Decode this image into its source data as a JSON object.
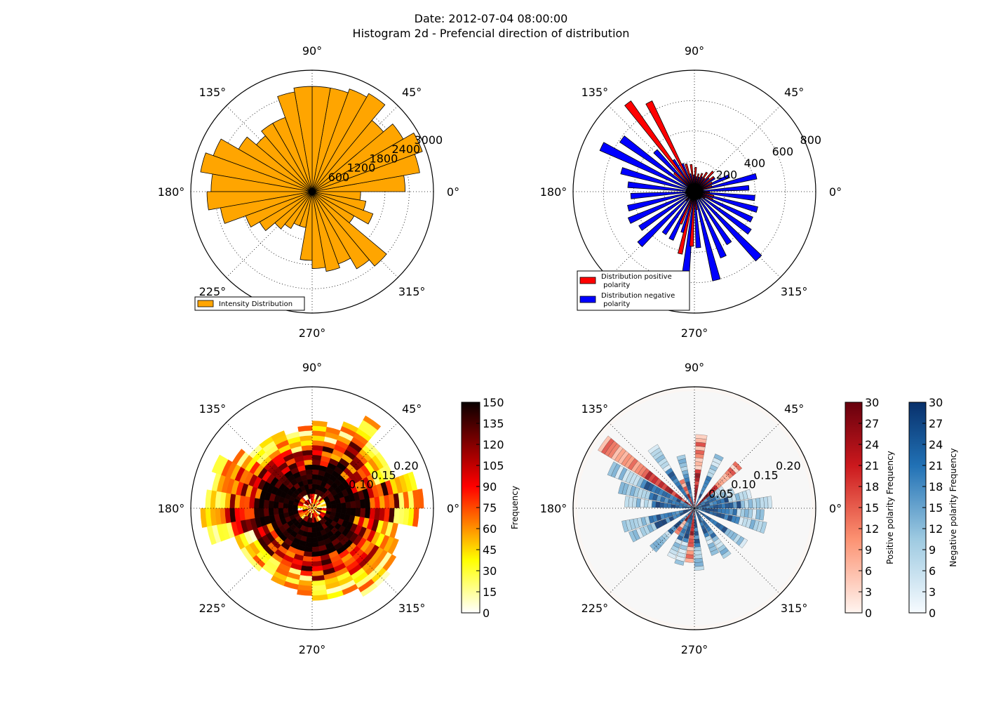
{
  "figure": {
    "title_line1": "Date: 2012-07-04 08:00:00",
    "title_line2": "Histogram 2d - Prefencial direction of distribution"
  },
  "colors": {
    "intensity": "#ffa500",
    "positive": "#ff0000",
    "negative": "#0000ff",
    "outline": "#000000"
  },
  "chart_data": [
    {
      "type": "bar",
      "projection": "polar",
      "angle_labels": [
        "0°",
        "45°",
        "90°",
        "135°",
        "180°",
        "225°",
        "270°",
        "315°"
      ],
      "radial_ticks": [
        600,
        1200,
        1800,
        2400,
        3000
      ],
      "radial_tick_labels": [
        "600",
        "1200",
        "1800",
        "2400",
        "3000"
      ],
      "rmax": 3000,
      "bin_width_deg": 10,
      "legend": {
        "location": "lower-left"
      },
      "series": [
        {
          "name": "Intensity Distribution",
          "color": "#ffa500",
          "angles_deg": [
            0,
            10,
            20,
            30,
            40,
            50,
            60,
            70,
            80,
            90,
            100,
            110,
            120,
            130,
            140,
            150,
            160,
            170,
            180,
            190,
            200,
            210,
            220,
            230,
            240,
            250,
            260,
            270,
            280,
            290,
            300,
            310,
            320,
            330,
            340,
            350
          ],
          "values": [
            2300,
            2700,
            2900,
            2600,
            2300,
            2800,
            2700,
            2600,
            2600,
            2600,
            2500,
            1950,
            1950,
            1800,
            2100,
            2600,
            2800,
            2500,
            2600,
            2300,
            1750,
            1500,
            1200,
            1050,
            900,
            900,
            1700,
            1900,
            2000,
            1900,
            2200,
            2400,
            1200,
            1600,
            1350,
            1200
          ]
        }
      ]
    },
    {
      "type": "bar",
      "projection": "polar",
      "angle_labels": [
        "0°",
        "45°",
        "90°",
        "135°",
        "180°",
        "225°",
        "270°",
        "315°"
      ],
      "radial_ticks": [
        200,
        400,
        600,
        800
      ],
      "radial_tick_labels": [
        "200",
        "400",
        "600",
        "800"
      ],
      "rmax": 800,
      "legend": {
        "location": "lower-left"
      },
      "series": [
        {
          "name": "Distribution positive\n polarity",
          "color": "#ff0000",
          "angles_deg": [
            0,
            10,
            20,
            30,
            40,
            50,
            60,
            70,
            80,
            90,
            100,
            110,
            120,
            130,
            180,
            200,
            220,
            240,
            250,
            260,
            270,
            280,
            290,
            300,
            310,
            320,
            330,
            340,
            350
          ],
          "values": [
            60,
            120,
            130,
            160,
            180,
            150,
            130,
            120,
            160,
            180,
            190,
            660,
            730,
            180,
            60,
            60,
            80,
            230,
            420,
            360,
            120,
            40,
            40,
            60,
            60,
            80,
            130,
            130,
            100
          ]
        },
        {
          "name": "Distribution negative\n polarity",
          "color": "#0000ff",
          "angles_deg": [
            0,
            10,
            20,
            30,
            40,
            50,
            60,
            70,
            80,
            90,
            100,
            110,
            120,
            130,
            140,
            150,
            160,
            170,
            180,
            190,
            200,
            210,
            220,
            230,
            240,
            250,
            260,
            270,
            280,
            290,
            300,
            310,
            320,
            330,
            340,
            350
          ],
          "values": [
            360,
            420,
            250,
            160,
            130,
            110,
            110,
            100,
            100,
            110,
            120,
            200,
            250,
            370,
            590,
            680,
            500,
            440,
            420,
            450,
            470,
            430,
            500,
            340,
            350,
            280,
            580,
            370,
            600,
            470,
            410,
            610,
            450,
            420,
            430,
            400
          ]
        }
      ]
    },
    {
      "type": "heatmap",
      "projection": "polar",
      "angle_labels": [
        "0°",
        "45°",
        "90°",
        "135°",
        "180°",
        "225°",
        "270°",
        "315°"
      ],
      "radial_tick_labels": [
        "0.10",
        "0.15",
        "0.20"
      ],
      "radial_ticks": [
        0.1,
        0.15,
        0.2
      ],
      "rmax": 0.25,
      "colormap": "hot_r",
      "colorbar": {
        "label": "Frequency",
        "ticks": [
          0,
          15,
          30,
          45,
          60,
          75,
          90,
          105,
          120,
          135,
          150
        ],
        "tick_labels": [
          "0",
          "15",
          "30",
          "45",
          "60",
          "75",
          "90",
          "105",
          "120",
          "135",
          "150"
        ],
        "range": [
          0,
          150
        ]
      },
      "r_bin_edges": [
        0.0,
        0.01,
        0.02,
        0.03,
        0.04,
        0.05,
        0.06,
        0.07,
        0.08,
        0.09,
        0.1,
        0.11,
        0.12,
        0.13,
        0.14,
        0.15,
        0.16,
        0.17,
        0.18,
        0.19,
        0.2,
        0.21,
        0.22,
        0.23,
        0.24,
        0.25
      ],
      "theta_bin_width_deg": 10,
      "frequency_max_radius_by_direction": [
        0.23,
        0.22,
        0.18,
        0.18,
        0.18,
        0.22,
        0.19,
        0.17,
        0.18,
        0.17,
        0.16,
        0.17,
        0.17,
        0.17,
        0.19,
        0.22,
        0.21,
        0.22,
        0.23,
        0.22,
        0.17,
        0.17,
        0.17,
        0.16,
        0.17,
        0.17,
        0.18,
        0.19,
        0.19,
        0.19,
        0.21,
        0.21,
        0.2,
        0.19,
        0.18,
        0.22
      ]
    },
    {
      "type": "heatmap",
      "projection": "polar",
      "angle_labels": [
        "0°",
        "45°",
        "90°",
        "135°",
        "180°",
        "225°",
        "270°",
        "315°"
      ],
      "radial_tick_labels": [
        "0.05",
        "0.10",
        "0.15",
        "0.20"
      ],
      "radial_ticks": [
        0.05,
        0.1,
        0.15,
        0.2
      ],
      "rmax": 0.25,
      "colorbars": [
        {
          "label": "Positive polarity Frequency",
          "colormap": "Reds",
          "ticks": [
            0,
            3,
            6,
            9,
            12,
            15,
            18,
            21,
            24,
            27,
            30
          ],
          "tick_labels": [
            "0",
            "3",
            "6",
            "9",
            "12",
            "15",
            "18",
            "21",
            "24",
            "27",
            "30"
          ],
          "range": [
            0,
            30
          ]
        },
        {
          "label": "Negative polarity Frequency",
          "colormap": "Blues",
          "ticks": [
            0,
            3,
            6,
            9,
            12,
            15,
            18,
            21,
            24,
            27,
            30
          ],
          "tick_labels": [
            "0",
            "3",
            "6",
            "9",
            "12",
            "15",
            "18",
            "21",
            "24",
            "27",
            "30"
          ],
          "range": [
            0,
            30
          ]
        }
      ]
    }
  ]
}
